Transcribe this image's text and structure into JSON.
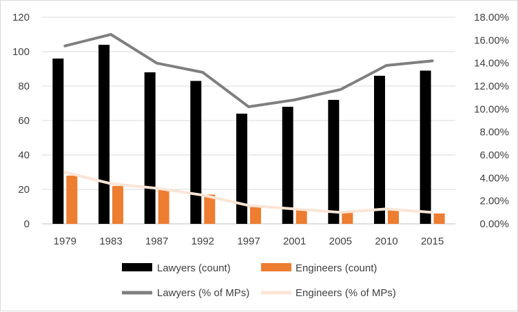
{
  "chart_data": {
    "type": "bar+line",
    "categories": [
      "1979",
      "1983",
      "1987",
      "1992",
      "1997",
      "2001",
      "2005",
      "2010",
      "2015"
    ],
    "bar_series": [
      {
        "name": "Lawyers (count)",
        "values": [
          96,
          104,
          88,
          83,
          64,
          68,
          72,
          86,
          89
        ],
        "color": "#000000"
      },
      {
        "name": "Engineers (count)",
        "values": [
          28,
          22,
          20,
          17,
          10,
          8,
          7,
          8,
          6
        ],
        "color": "#ED7D31"
      }
    ],
    "line_series": [
      {
        "name": "Lawyers (% of MPs)",
        "values": [
          0.155,
          0.165,
          0.14,
          0.132,
          0.102,
          0.108,
          0.117,
          0.138,
          0.142
        ],
        "color": "#7F7F7F"
      },
      {
        "name": "Engineers (% of MPs)",
        "values": [
          0.045,
          0.035,
          0.031,
          0.025,
          0.016,
          0.013,
          0.01,
          0.013,
          0.01
        ],
        "color": "#FBE5D6"
      }
    ],
    "y_left": {
      "min": 0,
      "max": 120,
      "ticks": [
        "0",
        "20",
        "40",
        "60",
        "80",
        "100",
        "120"
      ]
    },
    "y_right": {
      "min": 0,
      "max": 0.18,
      "ticks": [
        "0.00%",
        "2.00%",
        "4.00%",
        "6.00%",
        "8.00%",
        "10.00%",
        "12.00%",
        "14.00%",
        "16.00%",
        "18.00%"
      ]
    },
    "legend": {
      "row1": [
        "Lawyers (count)",
        "Engineers (count)"
      ],
      "row2": [
        "Lawyers (% of MPs)",
        "Engineers (% of MPs)"
      ]
    },
    "gridlines": true,
    "title": "",
    "xlabel": "",
    "ylabel": ""
  }
}
